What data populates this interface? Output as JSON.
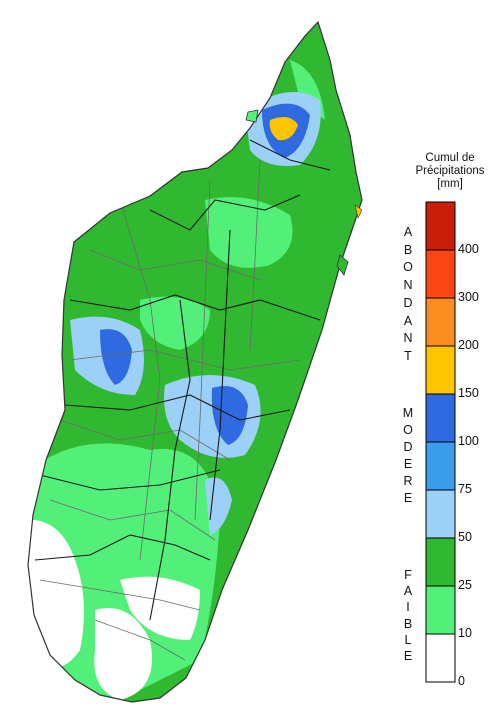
{
  "legend": {
    "title_line1": "Cumul de",
    "title_line2": "Précipitations",
    "unit": "[mm]",
    "bins": [
      {
        "from": 0,
        "to": 10,
        "color": "#ffffff"
      },
      {
        "from": 10,
        "to": 25,
        "color": "#52f078"
      },
      {
        "from": 25,
        "to": 50,
        "color": "#30b830"
      },
      {
        "from": 50,
        "to": 75,
        "color": "#9dd0f6"
      },
      {
        "from": 75,
        "to": 100,
        "color": "#3c9cec"
      },
      {
        "from": 100,
        "to": 150,
        "color": "#2f6ae0"
      },
      {
        "from": 150,
        "to": 200,
        "color": "#fdc400"
      },
      {
        "from": 200,
        "to": 300,
        "color": "#fa8c20"
      },
      {
        "from": 300,
        "to": 400,
        "color": "#fa4614"
      },
      {
        "from": 400,
        "to": null,
        "color": "#c81e0a"
      }
    ],
    "ticks": [
      "0",
      "10",
      "25",
      "50",
      "75",
      "100",
      "150",
      "200",
      "300",
      "400"
    ],
    "categories": [
      {
        "word": "FAIBLE",
        "letters": [
          "F",
          "A",
          "I",
          "B",
          "L",
          "E"
        ]
      },
      {
        "word": "MODERE",
        "letters": [
          "M",
          "O",
          "D",
          "E",
          "R",
          "E"
        ]
      },
      {
        "word": "ABONDANT",
        "letters": [
          "A",
          "B",
          "O",
          "N",
          "D",
          "A",
          "N",
          "T"
        ]
      }
    ]
  },
  "map": {
    "colors": {
      "border_region": "#1a1a1a",
      "border_district": "#6a6a6a",
      "coast": "#333333"
    }
  }
}
